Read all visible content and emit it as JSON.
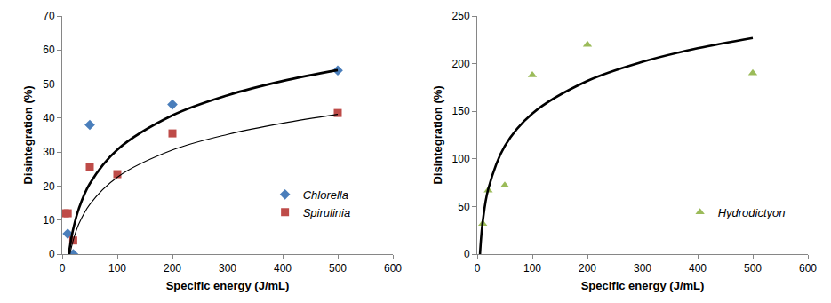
{
  "chart_data": [
    {
      "type": "scatter",
      "x_label": "Specific energy (J/mL)",
      "y_label": "Disintegration (%)",
      "xlim": [
        0,
        600
      ],
      "xticks": [
        0,
        100,
        200,
        300,
        400,
        500,
        600
      ],
      "ylim": [
        0,
        70
      ],
      "yticks": [
        0,
        10,
        20,
        30,
        40,
        50,
        60,
        70
      ],
      "grid": false,
      "legend": "lower right",
      "series": [
        {
          "name": "Chlorella",
          "type": "scatter",
          "color": "#4a7ebb",
          "marker": "diamond",
          "x": [
            10,
            20,
            50,
            200,
            500
          ],
          "values": [
            6,
            0,
            38,
            44,
            54
          ]
        },
        {
          "name": "Spirulinia",
          "type": "scatter",
          "color": "#be4b48",
          "marker": "square",
          "x": [
            5,
            10,
            20,
            50,
            100,
            200,
            500
          ],
          "values": [
            12,
            12,
            4,
            25.5,
            23.5,
            35.5,
            41.5
          ]
        },
        {
          "type": "line",
          "color": "#000000",
          "line_style": "solid",
          "x": [
            12,
            15,
            20,
            30,
            50,
            100,
            200,
            300,
            400,
            500
          ],
          "values": [
            0,
            3.2,
            7.4,
            13.3,
            20.7,
            30.7,
            40.8,
            46.7,
            50.9,
            54.1
          ]
        },
        {
          "type": "line",
          "color": "#000000",
          "line_style": "solid",
          "x": [
            14,
            20,
            30,
            50,
            100,
            200,
            300,
            400,
            500
          ],
          "values": [
            0,
            4.1,
            8.8,
            14.6,
            22.6,
            30.6,
            35.2,
            38.5,
            41.1
          ]
        }
      ]
    },
    {
      "type": "scatter",
      "x_label": "Specific energy (J/mL)",
      "y_label": "Disintegration (%)",
      "xlim": [
        0,
        600
      ],
      "xticks": [
        0,
        100,
        200,
        300,
        400,
        500,
        600
      ],
      "ylim": [
        0,
        250
      ],
      "yticks": [
        0,
        50,
        100,
        150,
        200,
        250
      ],
      "grid": false,
      "legend": "lower right",
      "series": [
        {
          "name": "Hydrodictyon",
          "type": "scatter",
          "color": "#9bbb59",
          "marker": "triangle-up",
          "x": [
            10,
            20,
            50,
            100,
            200,
            500
          ],
          "values": [
            32,
            67,
            72,
            188,
            220,
            190
          ]
        },
        {
          "type": "line",
          "color": "#000000",
          "line_style": "solid",
          "x": [
            5,
            7,
            10,
            20,
            50,
            100,
            200,
            300,
            400,
            500
          ],
          "values": [
            0,
            16.6,
            34.2,
            68.3,
            113.5,
            147.7,
            181.9,
            201.9,
            216.1,
            227
          ]
        }
      ]
    }
  ]
}
